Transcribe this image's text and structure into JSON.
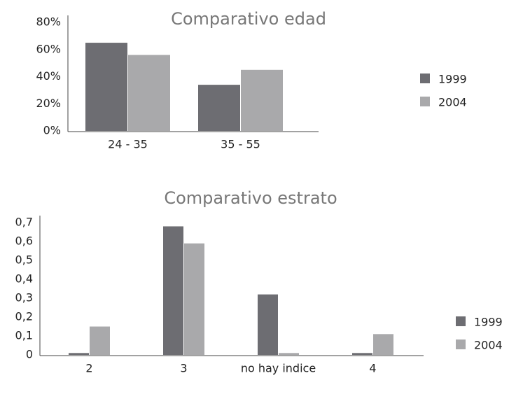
{
  "chart_data": [
    {
      "type": "bar",
      "title": "Comparativo edad",
      "categories": [
        "24 - 35",
        "35 - 55"
      ],
      "series": [
        {
          "name": "1999",
          "color": "#6d6d72",
          "values": [
            65,
            34
          ]
        },
        {
          "name": "2004",
          "color": "#a9a9ab",
          "values": [
            56,
            45
          ]
        }
      ],
      "ylim": [
        0,
        80
      ],
      "yticks": [
        {
          "value": 0,
          "label": "0%"
        },
        {
          "value": 20,
          "label": "20%"
        },
        {
          "value": 40,
          "label": "40%"
        },
        {
          "value": 60,
          "label": "60%"
        },
        {
          "value": 80,
          "label": "80%"
        }
      ],
      "legend": "right"
    },
    {
      "type": "bar",
      "title": "Comparativo estrato",
      "categories": [
        "2",
        "3",
        "no hay indice",
        "4"
      ],
      "series": [
        {
          "name": "1999",
          "color": "#6d6d72",
          "values": [
            0.01,
            0.68,
            0.32,
            0.01
          ]
        },
        {
          "name": "2004",
          "color": "#a9a9ab",
          "values": [
            0.15,
            0.59,
            0.01,
            0.11
          ]
        }
      ],
      "ylim": [
        0,
        0.7
      ],
      "yticks": [
        0,
        {
          "value": 0.1,
          "label": "0,1"
        },
        {
          "value": 0.2,
          "label": "0,2"
        },
        {
          "value": 0.3,
          "label": "0,3"
        },
        {
          "value": 0.4,
          "label": "0,4"
        },
        {
          "value": 0.5,
          "label": "0,5"
        },
        {
          "value": 0.6,
          "label": "0,6"
        },
        {
          "value": 0.7,
          "label": "0,7"
        }
      ],
      "legend": "right"
    }
  ]
}
